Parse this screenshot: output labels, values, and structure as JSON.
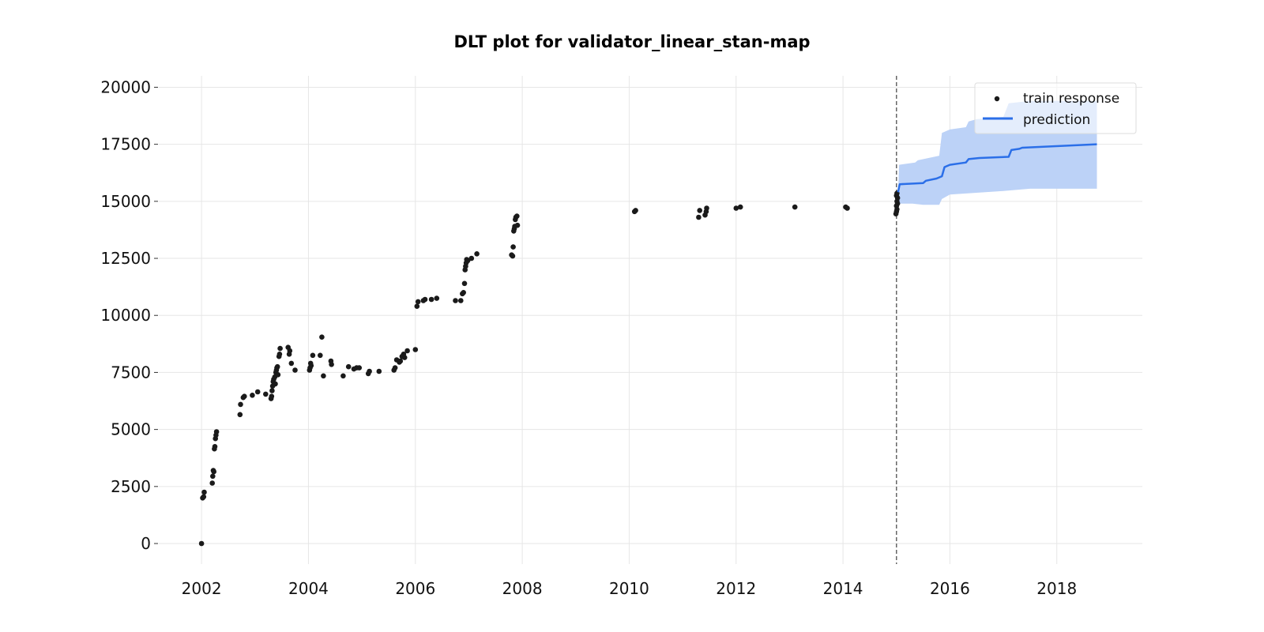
{
  "chart_data": {
    "type": "scatter",
    "title": "DLT plot for validator_linear_stan-map",
    "xlabel": "",
    "ylabel": "",
    "x_ticks": [
      "2002",
      "2004",
      "2006",
      "2008",
      "2010",
      "2012",
      "2014",
      "2016",
      "2018"
    ],
    "y_ticks": [
      "0",
      "2500",
      "5000",
      "7500",
      "10000",
      "12500",
      "15000",
      "17500",
      "20000"
    ],
    "xlim": [
      2001.2,
      2019.6
    ],
    "ylim": [
      -900,
      20500
    ],
    "grid": true,
    "legend_position": "top-right",
    "legend": [
      "train response",
      "prediction"
    ],
    "colors": {
      "train_response": "#1a1a1a",
      "prediction_line": "#2b6fe8",
      "prediction_band": "#bcd2f7",
      "split_line": "#666666"
    },
    "split_date": 2015.0,
    "series": [
      {
        "name": "train response",
        "type": "scatter",
        "points": [
          [
            2002.0,
            0
          ],
          [
            2002.02,
            2000
          ],
          [
            2002.04,
            2050
          ],
          [
            2002.05,
            2250
          ],
          [
            2002.2,
            2650
          ],
          [
            2002.21,
            2950
          ],
          [
            2002.22,
            3200
          ],
          [
            2002.23,
            3150
          ],
          [
            2002.24,
            4150
          ],
          [
            2002.25,
            4250
          ],
          [
            2002.26,
            4600
          ],
          [
            2002.27,
            4750
          ],
          [
            2002.28,
            4900
          ],
          [
            2002.72,
            5650
          ],
          [
            2002.73,
            6100
          ],
          [
            2002.78,
            6400
          ],
          [
            2002.8,
            6450
          ],
          [
            2002.95,
            6500
          ],
          [
            2003.05,
            6650
          ],
          [
            2003.2,
            6550
          ],
          [
            2003.3,
            6350
          ],
          [
            2003.31,
            6450
          ],
          [
            2003.32,
            6700
          ],
          [
            2003.33,
            6900
          ],
          [
            2003.34,
            7100
          ],
          [
            2003.35,
            7200
          ],
          [
            2003.37,
            7300
          ],
          [
            2003.38,
            7000
          ],
          [
            2003.39,
            7500
          ],
          [
            2003.4,
            7600
          ],
          [
            2003.41,
            7700
          ],
          [
            2003.42,
            7750
          ],
          [
            2003.43,
            7400
          ],
          [
            2003.45,
            8200
          ],
          [
            2003.46,
            8300
          ],
          [
            2003.47,
            8550
          ],
          [
            2003.62,
            8600
          ],
          [
            2003.64,
            8300
          ],
          [
            2003.65,
            8450
          ],
          [
            2003.68,
            7900
          ],
          [
            2003.75,
            7600
          ],
          [
            2004.02,
            7600
          ],
          [
            2004.03,
            7700
          ],
          [
            2004.04,
            7900
          ],
          [
            2004.05,
            7800
          ],
          [
            2004.08,
            8250
          ],
          [
            2004.22,
            8250
          ],
          [
            2004.25,
            9050
          ],
          [
            2004.28,
            7350
          ],
          [
            2004.42,
            8000
          ],
          [
            2004.43,
            7850
          ],
          [
            2004.65,
            7350
          ],
          [
            2004.75,
            7750
          ],
          [
            2004.85,
            7650
          ],
          [
            2004.9,
            7700
          ],
          [
            2004.95,
            7700
          ],
          [
            2005.12,
            7450
          ],
          [
            2005.14,
            7550
          ],
          [
            2005.32,
            7550
          ],
          [
            2005.6,
            7600
          ],
          [
            2005.62,
            7700
          ],
          [
            2005.65,
            8050
          ],
          [
            2005.7,
            7950
          ],
          [
            2005.72,
            8000
          ],
          [
            2005.75,
            8200
          ],
          [
            2005.78,
            8300
          ],
          [
            2005.8,
            8150
          ],
          [
            2005.85,
            8450
          ],
          [
            2006.0,
            8500
          ],
          [
            2006.03,
            10400
          ],
          [
            2006.05,
            10600
          ],
          [
            2006.15,
            10650
          ],
          [
            2006.18,
            10700
          ],
          [
            2006.3,
            10700
          ],
          [
            2006.4,
            10750
          ],
          [
            2006.75,
            10650
          ],
          [
            2006.85,
            10650
          ],
          [
            2006.88,
            10950
          ],
          [
            2006.9,
            11000
          ],
          [
            2006.92,
            11400
          ],
          [
            2006.93,
            12000
          ],
          [
            2006.94,
            12150
          ],
          [
            2006.95,
            12300
          ],
          [
            2006.96,
            12450
          ],
          [
            2006.98,
            12400
          ],
          [
            2007.05,
            12500
          ],
          [
            2007.15,
            12700
          ],
          [
            2007.8,
            12650
          ],
          [
            2007.82,
            12600
          ],
          [
            2007.83,
            13000
          ],
          [
            2007.84,
            13700
          ],
          [
            2007.85,
            13800
          ],
          [
            2007.86,
            13900
          ],
          [
            2007.87,
            14200
          ],
          [
            2007.88,
            14300
          ],
          [
            2007.9,
            14350
          ],
          [
            2007.91,
            13950
          ],
          [
            2010.1,
            14550
          ],
          [
            2010.12,
            14600
          ],
          [
            2011.3,
            14300
          ],
          [
            2011.32,
            14600
          ],
          [
            2011.42,
            14400
          ],
          [
            2011.44,
            14550
          ],
          [
            2011.45,
            14700
          ],
          [
            2012.0,
            14700
          ],
          [
            2012.08,
            14750
          ],
          [
            2013.1,
            14750
          ],
          [
            2014.05,
            14750
          ],
          [
            2014.08,
            14700
          ],
          [
            2014.99,
            14450
          ],
          [
            2015.0,
            14550
          ],
          [
            2015.01,
            14650
          ],
          [
            2015.0,
            14800
          ],
          [
            2015.02,
            14900
          ],
          [
            2015.01,
            15000
          ],
          [
            2015.02,
            15150
          ],
          [
            2015.0,
            15250
          ],
          [
            2015.01,
            15350
          ]
        ]
      },
      {
        "name": "prediction",
        "type": "line",
        "points": [
          [
            2015.03,
            15400
          ],
          [
            2015.06,
            15750
          ],
          [
            2015.5,
            15800
          ],
          [
            2015.55,
            15900
          ],
          [
            2015.75,
            16000
          ],
          [
            2015.85,
            16100
          ],
          [
            2015.9,
            16500
          ],
          [
            2016.0,
            16600
          ],
          [
            2016.3,
            16700
          ],
          [
            2016.35,
            16850
          ],
          [
            2016.55,
            16900
          ],
          [
            2017.1,
            16950
          ],
          [
            2017.15,
            17250
          ],
          [
            2017.3,
            17300
          ],
          [
            2017.35,
            17350
          ],
          [
            2018.75,
            17500
          ]
        ]
      }
    ],
    "prediction_band": {
      "upper": [
        [
          2015.03,
          15300
        ],
        [
          2015.05,
          16600
        ],
        [
          2015.35,
          16700
        ],
        [
          2015.4,
          16800
        ],
        [
          2015.8,
          17000
        ],
        [
          2015.85,
          18000
        ],
        [
          2016.0,
          18150
        ],
        [
          2016.3,
          18250
        ],
        [
          2016.35,
          18500
        ],
        [
          2016.5,
          18600
        ],
        [
          2017.0,
          18700
        ],
        [
          2017.1,
          19300
        ],
        [
          2017.5,
          19400
        ],
        [
          2018.75,
          19400
        ]
      ],
      "lower": [
        [
          2018.75,
          15550
        ],
        [
          2017.5,
          15550
        ],
        [
          2017.0,
          15450
        ],
        [
          2016.0,
          15300
        ],
        [
          2015.85,
          15100
        ],
        [
          2015.8,
          14850
        ],
        [
          2015.5,
          14850
        ],
        [
          2015.3,
          14900
        ],
        [
          2015.05,
          14900
        ],
        [
          2015.03,
          15300
        ]
      ]
    }
  }
}
